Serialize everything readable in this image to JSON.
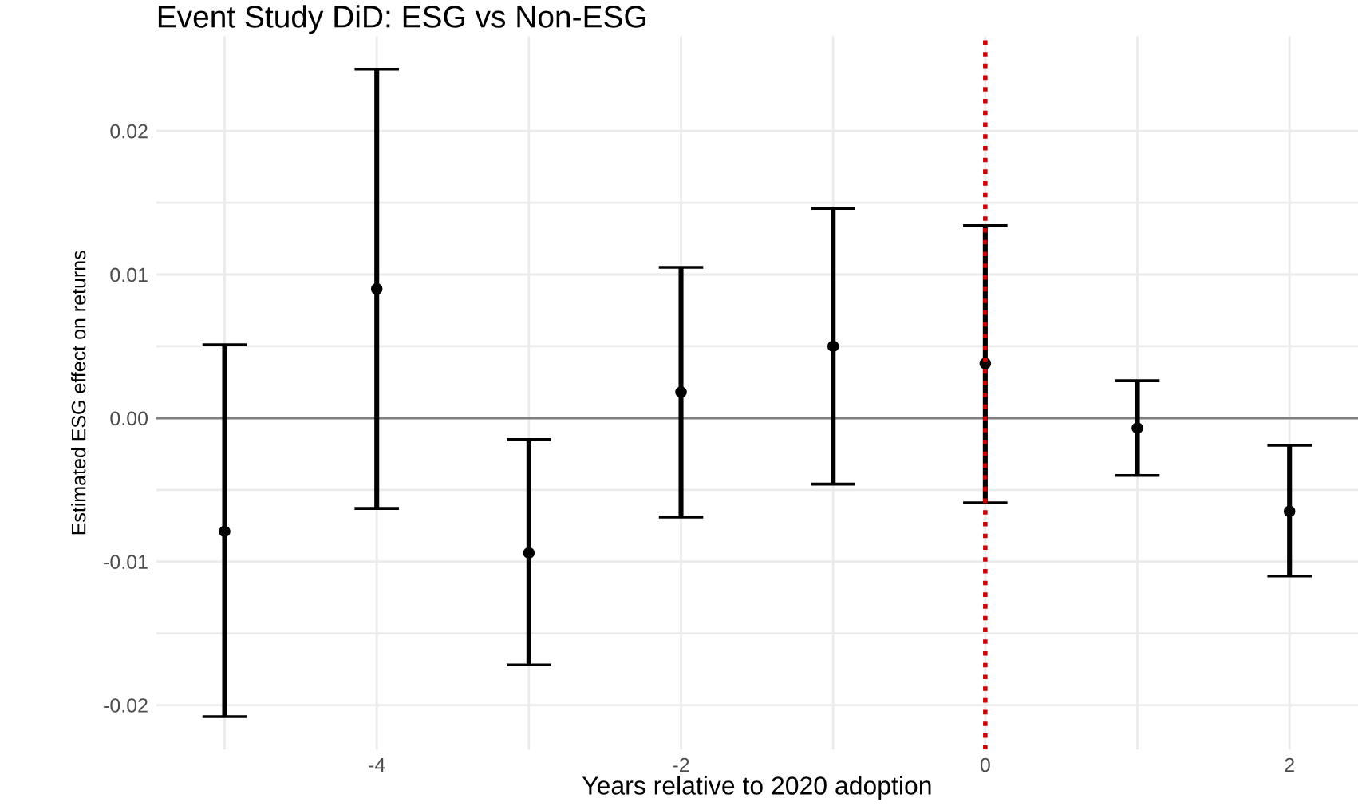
{
  "chart_data": {
    "type": "scatter",
    "title": "Event Study DiD: ESG vs Non-ESG",
    "xlabel": "Years relative to 2020 adoption",
    "ylabel": "Estimated ESG effect on returns",
    "x": [
      -5,
      -4,
      -3,
      -2,
      -1,
      0,
      1,
      2
    ],
    "series": [
      {
        "color": "#000000",
        "values": [
          -0.0079,
          0.009,
          -0.0094,
          0.0018,
          0.005,
          0.0038,
          -0.0007,
          -0.0065
        ],
        "errors": [
          [
            -0.0208,
            0.0051
          ],
          [
            -0.0063,
            0.0243
          ],
          [
            -0.0172,
            -0.0015
          ],
          [
            -0.0069,
            0.0105
          ],
          [
            -0.0046,
            0.0146
          ],
          [
            -0.0059,
            0.0134
          ],
          [
            -0.004,
            0.0026
          ],
          [
            -0.011,
            -0.0019
          ]
        ]
      }
    ],
    "marker": "circle",
    "grid": true,
    "xlim": [
      -5.45,
      2.45
    ],
    "ylim": [
      -0.0231,
      0.0266
    ],
    "xticks": [
      {
        "value": -5,
        "label": null
      },
      -4,
      {
        "value": -3,
        "label": null
      },
      -2,
      {
        "value": -1,
        "label": null
      },
      0,
      {
        "value": 1,
        "label": null
      },
      2
    ],
    "yticks": [
      {
        "value": -0.02,
        "label": "-0.02"
      },
      {
        "value": -0.015,
        "label": null
      },
      {
        "value": -0.01,
        "label": "-0.01"
      },
      {
        "value": -0.005,
        "label": null
      },
      {
        "value": 0,
        "label": "0.00"
      },
      {
        "value": 0.005,
        "label": null
      },
      {
        "value": 0.01,
        "label": "0.01"
      },
      {
        "value": 0.015,
        "label": null
      },
      {
        "value": 0.02,
        "label": "0.02"
      }
    ],
    "ref_lines": [
      {
        "axis": "y",
        "value": 0,
        "color": "#7f7f7f",
        "line_style": "solid"
      },
      {
        "axis": "x",
        "value": 0,
        "color": "#cc0000",
        "line_style": "dotted"
      }
    ]
  }
}
